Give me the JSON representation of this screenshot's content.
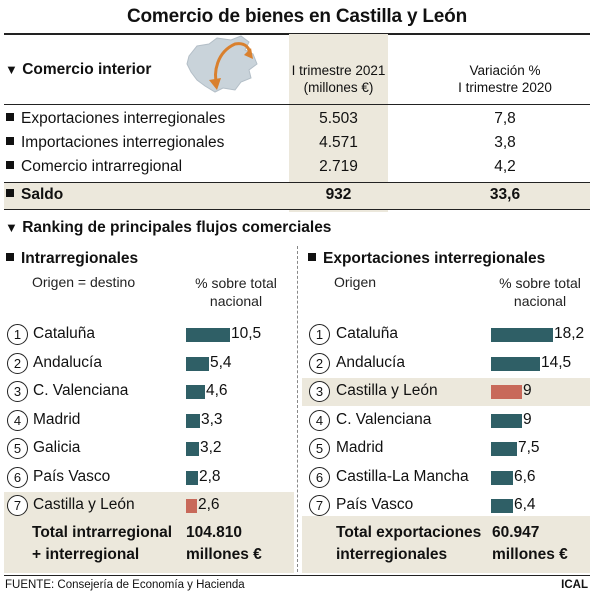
{
  "title": "Comercio de bienes en Castilla y León",
  "interior": {
    "section_title": "Comercio interior",
    "col1_header": [
      "I trimestre 2021",
      "(millones €)"
    ],
    "col2_header": [
      "Variación %",
      "I trimestre 2020"
    ],
    "rows": [
      {
        "label": "Exportaciones interregionales",
        "value": "5.503",
        "variation": "7,8"
      },
      {
        "label": "Importaciones interregionales",
        "value": "4.571",
        "variation": "3,8"
      },
      {
        "label": "Comercio intrarregional",
        "value": "2.719",
        "variation": "4,2"
      }
    ],
    "saldo": {
      "label": "Saldo",
      "value": "932",
      "variation": "33,6"
    }
  },
  "ranking": {
    "section_title": "Ranking de principales flujos comerciales"
  },
  "chart_data": [
    {
      "type": "bar",
      "title": "Intrarregionales",
      "xlabel": "Origen = destino",
      "ylabel": "% sobre total nacional",
      "ranks": [
        "1",
        "2",
        "3",
        "4",
        "5",
        "6",
        "7"
      ],
      "categories": [
        "Cataluña",
        "Andalucía",
        "C. Valenciana",
        "Madrid",
        "Galicia",
        "País Vasco",
        "Castilla y León"
      ],
      "values": [
        10.5,
        5.4,
        4.6,
        3.3,
        3.2,
        2.8,
        2.6
      ],
      "value_labels": [
        "10,5",
        "5,4",
        "4,6",
        "3,3",
        "3,2",
        "2,8",
        "2,6"
      ],
      "highlight": "Castilla y León",
      "total_label": [
        "Total intrarregional",
        "+ interregional"
      ],
      "total_value": [
        "104.810",
        "millones €"
      ]
    },
    {
      "type": "bar",
      "title": "Exportaciones interregionales",
      "xlabel": "Origen",
      "ylabel": "% sobre total nacional",
      "ranks": [
        "1",
        "2",
        "3",
        "4",
        "5",
        "6",
        "7"
      ],
      "categories": [
        "Cataluña",
        "Andalucía",
        "Castilla y León",
        "C. Valenciana",
        "Madrid",
        "Castilla-La Mancha",
        "País Vasco"
      ],
      "values": [
        18.2,
        14.5,
        9,
        9,
        7.5,
        6.6,
        6.4
      ],
      "value_labels": [
        "18,2",
        "14,5",
        "9",
        "9",
        "7,5",
        "6,6",
        "6,4"
      ],
      "highlight": "Castilla y León",
      "total_label": [
        "Total exportaciones",
        "interregionales"
      ],
      "total_value": [
        "60.947",
        "millones €"
      ]
    }
  ],
  "colors": {
    "bar": "#2f5f66",
    "highlight_bar": "#c8695a",
    "shade": "#ece8dc",
    "map": "#c9d3da",
    "arrow": "#d9802e"
  },
  "footer": {
    "source": "FUENTE: Consejería de Economía y Hacienda",
    "agency": "ICAL"
  }
}
